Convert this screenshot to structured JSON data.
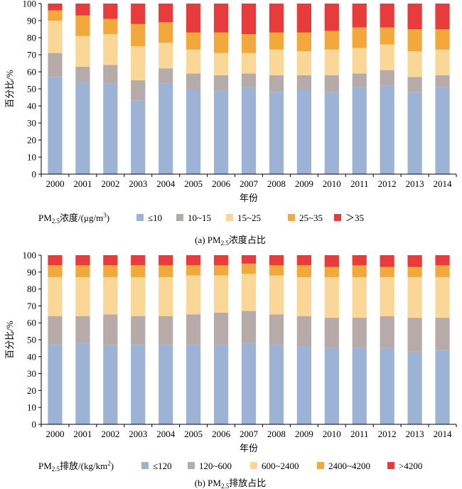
{
  "chart_data": [
    {
      "type": "bar",
      "stacked": true,
      "caption": "(a) PM2.5浓度占比",
      "caption_parts": {
        "prefix": "(a) PM",
        "sub": "2.5",
        "suffix": "浓度占比"
      },
      "xlabel": "年份",
      "ylabel": "百分比/%",
      "ylim": [
        0,
        100
      ],
      "yticks": [
        0,
        10,
        20,
        30,
        40,
        50,
        60,
        70,
        80,
        90,
        100
      ],
      "grid": false,
      "legend_title": "PM2.5浓度/(μg/m³)",
      "legend_title_parts": {
        "prefix": "PM",
        "sub": "2.5",
        "suffix": "浓度/(μg/m",
        "sup": "3",
        "end": ")"
      },
      "legend_position": "bottom",
      "categories": [
        "2000",
        "2001",
        "2002",
        "2003",
        "2004",
        "2005",
        "2006",
        "2007",
        "2008",
        "2009",
        "2010",
        "2011",
        "2012",
        "2013",
        "2014"
      ],
      "series": [
        {
          "name": "≤10",
          "color": "#9db3d6",
          "values": [
            57,
            54,
            53,
            43,
            53,
            50,
            49,
            51,
            48,
            50,
            48,
            51,
            52,
            48,
            51
          ]
        },
        {
          "name": "10~15",
          "color": "#b7aba9",
          "values": [
            14,
            9,
            11,
            12,
            9,
            9,
            9,
            8,
            10,
            8,
            10,
            8,
            9,
            9,
            7
          ]
        },
        {
          "name": "15~25",
          "color": "#fad797",
          "values": [
            19,
            18,
            18,
            20,
            15,
            14,
            13,
            12,
            15,
            14,
            15,
            15,
            15,
            15,
            15
          ]
        },
        {
          "name": "25~35",
          "color": "#f3a83c",
          "values": [
            6,
            12,
            9,
            13,
            12,
            10,
            12,
            11,
            10,
            11,
            11,
            12,
            10,
            13,
            12
          ]
        },
        {
          "name": "＞35",
          "color": "#e73b3c",
          "values": [
            4,
            7,
            9,
            12,
            11,
            17,
            17,
            18,
            17,
            17,
            16,
            14,
            14,
            15,
            15
          ]
        }
      ]
    },
    {
      "type": "bar",
      "stacked": true,
      "caption": "(b) PM2.5排放占比",
      "caption_parts": {
        "prefix": "(b) PM",
        "sub": "2.5",
        "suffix": "排放占比"
      },
      "xlabel": "年份",
      "ylabel": "百分比/%",
      "ylim": [
        0,
        100
      ],
      "yticks": [
        0,
        10,
        20,
        30,
        40,
        50,
        60,
        70,
        80,
        90,
        100
      ],
      "grid": false,
      "legend_title": "PM2.5排放/(kg/km²)",
      "legend_title_parts": {
        "prefix": "PM",
        "sub": "2.5",
        "suffix": "排放/(kg/km",
        "sup": "2",
        "end": ")"
      },
      "legend_position": "bottom",
      "categories": [
        "2000",
        "2001",
        "2002",
        "2003",
        "2004",
        "2005",
        "2006",
        "2007",
        "2008",
        "2009",
        "2010",
        "2011",
        "2012",
        "2013",
        "2014"
      ],
      "series": [
        {
          "name": "≤120",
          "color": "#9db3d6",
          "values": [
            47,
            48,
            47,
            47,
            47,
            47,
            47,
            48,
            47,
            46,
            45,
            45,
            45,
            43,
            44
          ]
        },
        {
          "name": "120~600",
          "color": "#b7aba9",
          "values": [
            17,
            16,
            18,
            17,
            17,
            18,
            19,
            19,
            18,
            18,
            18,
            18,
            19,
            20,
            19
          ]
        },
        {
          "name": "600~2400",
          "color": "#fad797",
          "values": [
            23,
            23,
            22,
            23,
            23,
            23,
            22,
            22,
            23,
            23,
            24,
            24,
            23,
            24,
            24
          ]
        },
        {
          "name": "2400~4200",
          "color": "#f3a83c",
          "values": [
            7,
            7,
            7,
            7,
            7,
            6,
            6,
            6,
            6,
            7,
            6,
            7,
            6,
            6,
            7
          ]
        },
        {
          "name": ">4200",
          "color": "#e73b3c",
          "values": [
            6,
            6,
            6,
            6,
            6,
            6,
            6,
            5,
            6,
            6,
            7,
            6,
            7,
            7,
            6
          ]
        }
      ]
    }
  ]
}
